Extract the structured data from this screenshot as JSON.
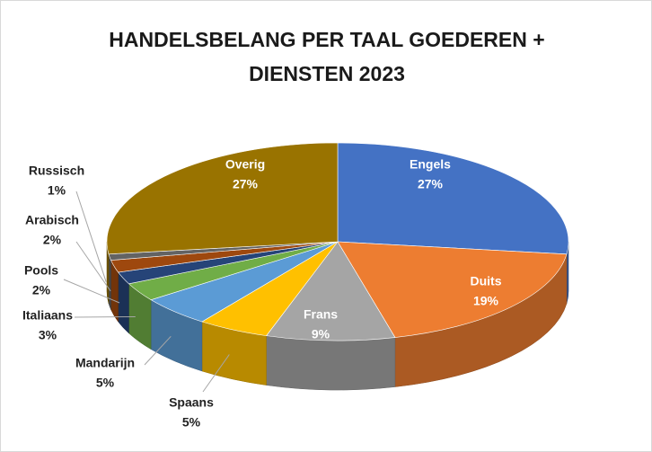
{
  "chart_data": {
    "type": "pie3d",
    "title": "HANDELSBELANG PER TAAL GOEDEREN + DIENSTEN 2023",
    "categories": [
      "Engels",
      "Duits",
      "Frans",
      "Spaans",
      "Mandarijn",
      "Italiaans",
      "Pools",
      "Arabisch",
      "Russisch",
      "Overig"
    ],
    "values": [
      27,
      19,
      9,
      5,
      5,
      3,
      2,
      2,
      1,
      27
    ],
    "value_labels": [
      "27%",
      "19%",
      "9%",
      "5%",
      "5%",
      "3%",
      "2%",
      "2%",
      "1%",
      "27%"
    ],
    "colors": [
      "#4472c4",
      "#ed7d31",
      "#a5a5a5",
      "#ffc000",
      "#5b9bd5",
      "#70ad47",
      "#264478",
      "#9e480e",
      "#636363",
      "#997300"
    ]
  }
}
